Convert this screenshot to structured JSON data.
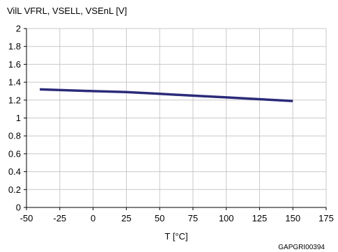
{
  "chart_data": {
    "type": "line",
    "title": "",
    "ylabel": "VilL VFRL, VSELL, VSEnL [V]",
    "xlabel": "T [°C]",
    "xlim": [
      -50,
      175
    ],
    "ylim": [
      0,
      2
    ],
    "xticks": [
      -50,
      -25,
      0,
      25,
      50,
      75,
      100,
      125,
      150,
      175
    ],
    "yticks": [
      0,
      0.2,
      0.4,
      0.6,
      0.8,
      1,
      1.2,
      1.4,
      1.6,
      1.8,
      2
    ],
    "grid": true,
    "legend": "none",
    "series": [
      {
        "x": [
          -40,
          0,
          25,
          50,
          75,
          100,
          125,
          150
        ],
        "values": [
          1.32,
          1.3,
          1.29,
          1.27,
          1.25,
          1.23,
          1.21,
          1.19
        ]
      }
    ],
    "colors": {
      "line": "#2b2b7a",
      "grid": "#c8c8c8",
      "axis": "#000000"
    },
    "figure_code": "GAPGRI00394"
  }
}
